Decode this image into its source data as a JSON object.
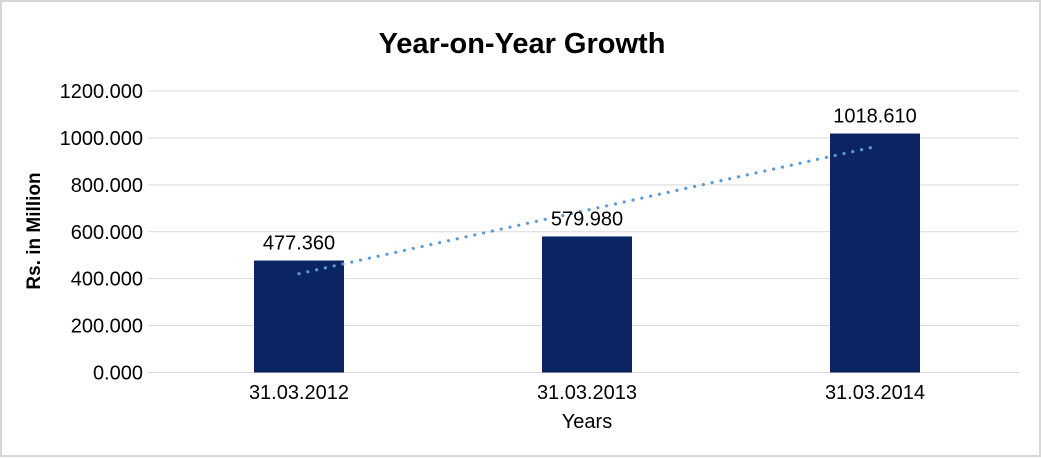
{
  "frame": {
    "background_color": "#ffffff",
    "border_color": "#d7d7d7"
  },
  "chart_data": {
    "type": "bar",
    "title": "Year-on-Year Growth",
    "xlabel": "Years",
    "ylabel": "Rs. in Million",
    "categories": [
      "31.03.2012",
      "31.03.2013",
      "31.03.2014"
    ],
    "values": [
      477.36,
      579.98,
      1018.61
    ],
    "value_labels": [
      "477.360",
      "579.980",
      "1018.610"
    ],
    "ylim": [
      0,
      1200
    ],
    "ytick_step": 200,
    "ytick_labels": [
      "0.000",
      "200.000",
      "400.000",
      "600.000",
      "800.000",
      "1000.000",
      "1200.000"
    ],
    "grid": true,
    "gridline_color": "#d9d9d9",
    "bar_color": "#0b2564",
    "legend": "none",
    "trendline": {
      "type": "linear",
      "style": "dotted",
      "color": "#5b9bd5",
      "start_value": 421.4,
      "end_value": 962.6
    }
  }
}
